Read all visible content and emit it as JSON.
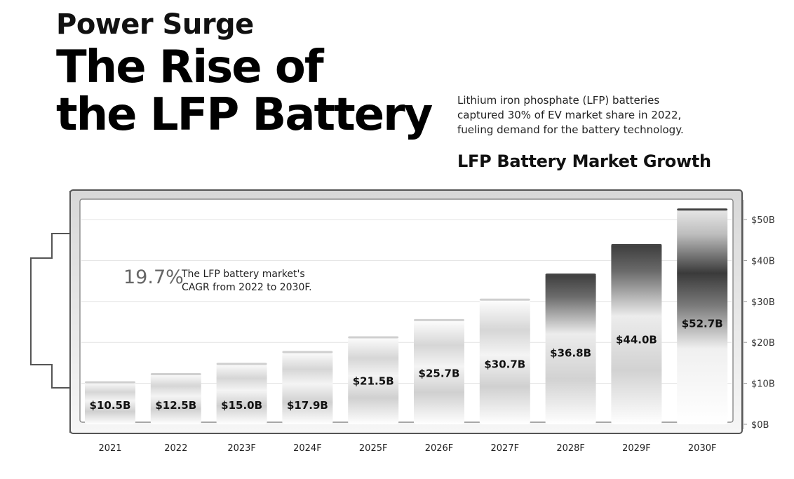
{
  "header": {
    "kicker": "Power Surge",
    "headline_lines": [
      "The Rise of",
      "the LFP Battery"
    ],
    "intro_lines": [
      "Lithium iron phosphate (LFP) batteries",
      "captured 30% of EV market share in 2022,",
      "fueling demand for the battery technology."
    ]
  },
  "annotation": {
    "value": "19.7%",
    "text_lines": [
      "The LFP battery market's",
      "CAGR from 2022 to 2030F."
    ]
  },
  "chart_data": {
    "type": "bar",
    "title": "LFP Battery Market Growth",
    "categories": [
      "2021",
      "2022",
      "2023F",
      "2024F",
      "2025F",
      "2026F",
      "2027F",
      "2028F",
      "2029F",
      "2030F"
    ],
    "values": [
      10.5,
      12.5,
      15.0,
      17.9,
      21.5,
      25.7,
      30.7,
      36.8,
      44.0,
      52.7
    ],
    "data_labels": [
      "$10.5B",
      "$12.5B",
      "$15.0B",
      "$17.9B",
      "$21.5B",
      "$25.7B",
      "$30.7B",
      "$36.8B",
      "$44.0B",
      "$52.7B"
    ],
    "yticks": [
      0,
      10,
      20,
      30,
      40,
      50
    ],
    "ytick_labels": [
      "$0B",
      "$10B",
      "$20B",
      "$30B",
      "$40B",
      "$50B"
    ],
    "ylim": [
      0,
      55
    ],
    "y_axis_side": "right",
    "grid": true,
    "xlabel": "",
    "ylabel": "",
    "colors": {
      "bar_light": "#ffffff",
      "bar_mid": "#d9d9d9",
      "bar_dark": "#555555",
      "axis": "#999999",
      "frame": "#555555"
    }
  }
}
